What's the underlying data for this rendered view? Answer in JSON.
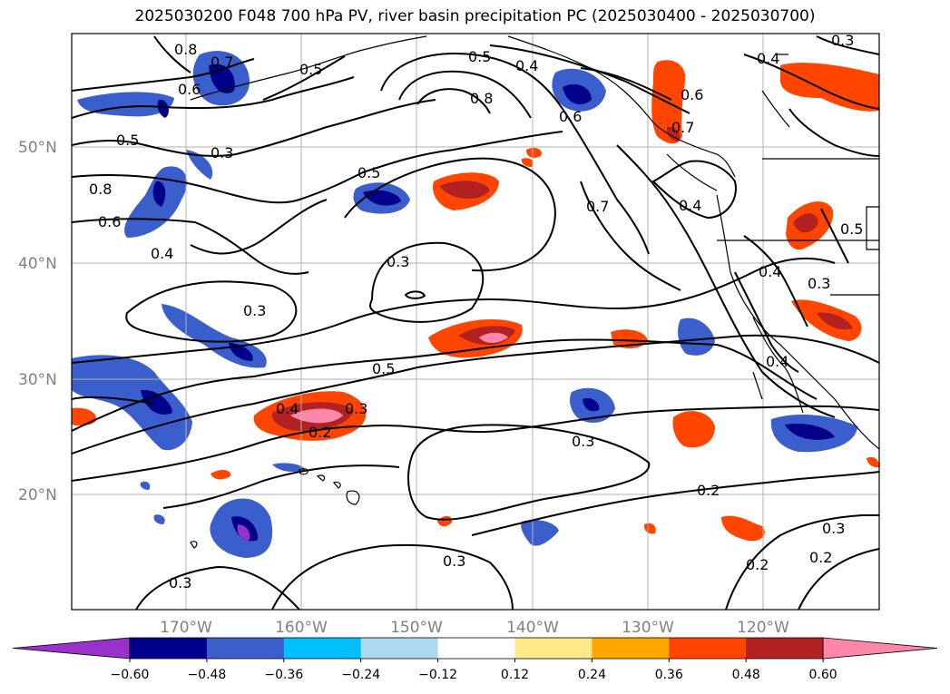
{
  "title": "2025030200 F048 700 hPa PV, river basin precipitation PC (2025030400 - 2025030700)",
  "lat_labels": [
    "50°N",
    "40°N",
    "30°N",
    "20°N"
  ],
  "lon_labels": [
    "170°W",
    "160°W",
    "150°W",
    "140°W",
    "130°W",
    "120°W"
  ],
  "contour_labels": [
    "0.8",
    "0.6",
    "0.5",
    "0.3",
    "0.5",
    "0.4",
    "0.8",
    "0.6",
    "0.6",
    "0.3",
    "0.4",
    "0.5",
    "0.7",
    "0.8",
    "0.6",
    "0.3",
    "0.5",
    "0.7",
    "0.4",
    "0.4",
    "0.3",
    "0.4",
    "0.3",
    "0.3",
    "0.5",
    "0.4",
    "0.3",
    "0.2",
    "0.3",
    "0.2",
    "0.3",
    "0.2",
    "0.3",
    "0.2",
    "0.5",
    "0.4",
    "0.7"
  ],
  "colorbar": {
    "colors": [
      "#9932cc",
      "#00008b",
      "#3a5fcd",
      "#00bfff",
      "#add8f2",
      "#ffffff",
      "#ffea8a",
      "#ffa500",
      "#ff4500",
      "#b22222",
      "#ff88aa"
    ],
    "labels": [
      "−0.60",
      "−0.48",
      "−0.36",
      "−0.24",
      "−0.12",
      "0.12",
      "0.24",
      "0.36",
      "0.48",
      "0.60"
    ]
  },
  "colors": {
    "gridline": "#b0b0b0",
    "contour": "#000000",
    "coast": "#000000",
    "axis_text": "#808080"
  }
}
